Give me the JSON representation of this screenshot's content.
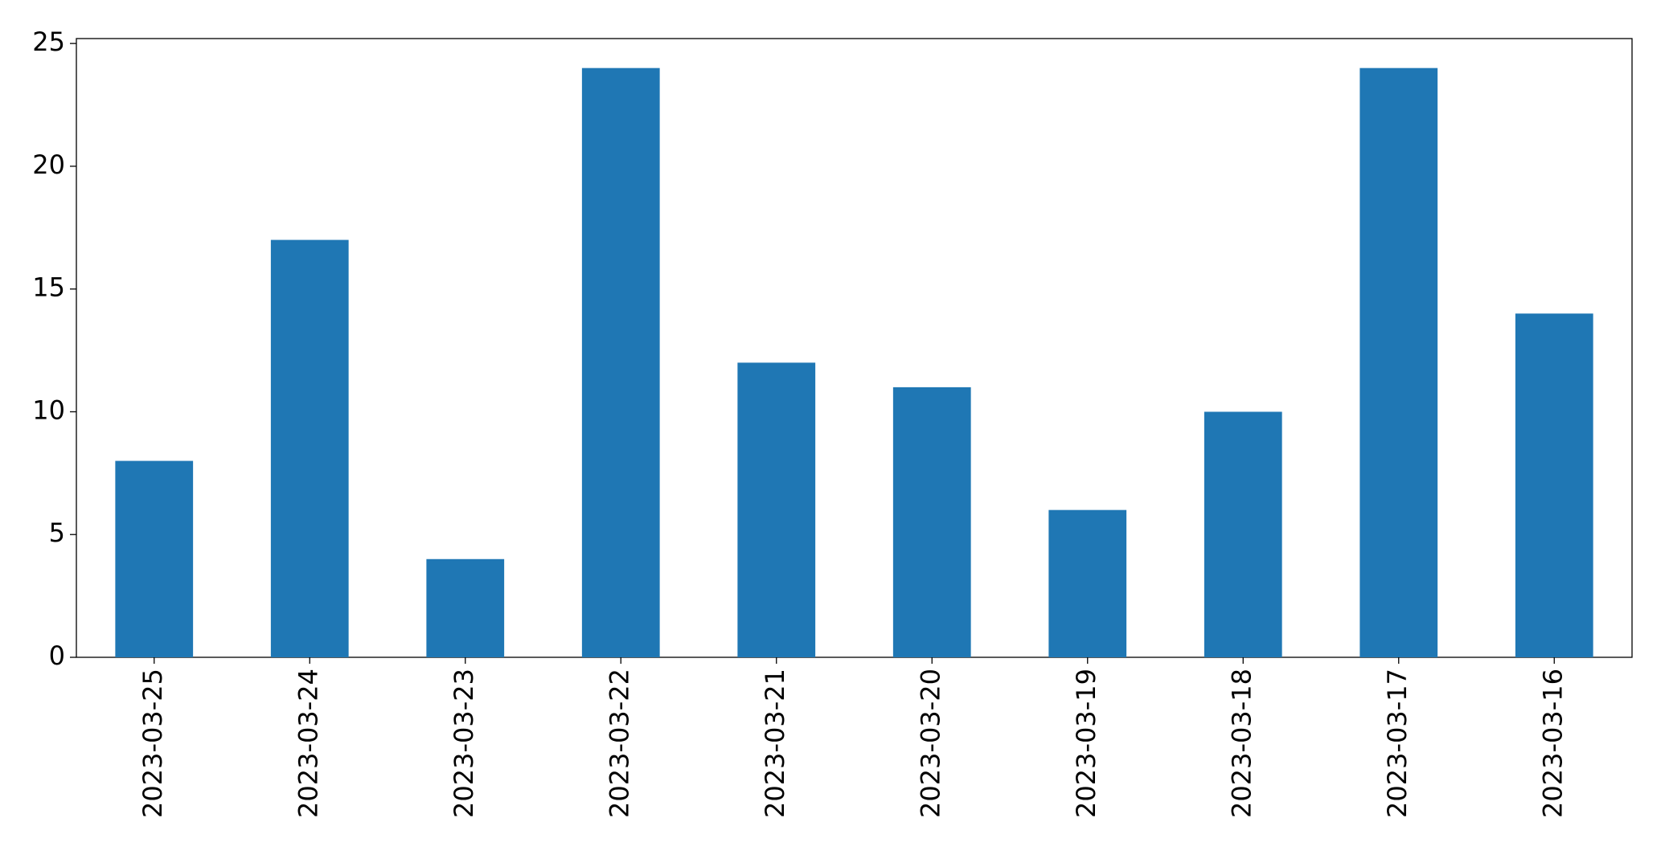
{
  "chart_data": {
    "type": "bar",
    "categories": [
      "2023-03-25",
      "2023-03-24",
      "2023-03-23",
      "2023-03-22",
      "2023-03-21",
      "2023-03-20",
      "2023-03-19",
      "2023-03-18",
      "2023-03-17",
      "2023-03-16"
    ],
    "values": [
      8,
      17,
      4,
      24,
      12,
      11,
      6,
      10,
      24,
      14
    ],
    "color": "#1f77b4",
    "ylim": [
      0,
      25.2
    ],
    "yticks": [
      0,
      5,
      10,
      15,
      20,
      25
    ],
    "grid": false
  }
}
